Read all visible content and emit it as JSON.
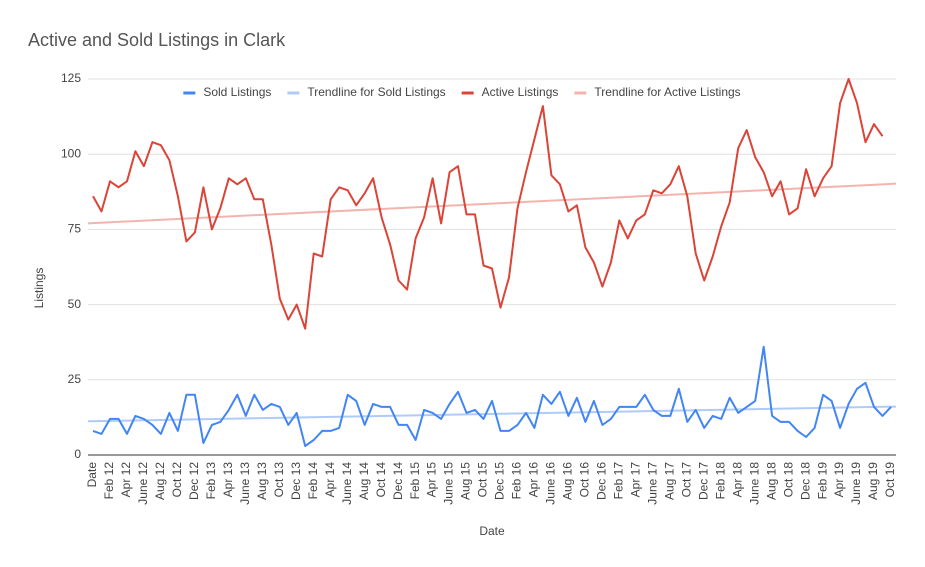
{
  "chart_data": {
    "type": "line",
    "title": "Active and Sold Listings in Clark",
    "x_label": "Date",
    "y_label": "Listings",
    "categories": [
      "Date",
      null,
      "Feb 12",
      null,
      "Apr 12",
      null,
      "June 12",
      null,
      "Aug 12",
      null,
      "Oct 12",
      null,
      "Dec 12",
      null,
      "Feb 13",
      null,
      "Apr 13",
      null,
      "June 13",
      null,
      "Aug 13",
      null,
      "Oct 13",
      null,
      "Dec 13",
      null,
      "Feb 14",
      null,
      "Apr 14",
      null,
      "June 14",
      null,
      "Aug 14",
      null,
      "Oct 14",
      null,
      "Dec 14",
      null,
      "Feb 15",
      null,
      "Apr 15",
      null,
      "June 15",
      null,
      "Aug 15",
      null,
      "Oct 15",
      null,
      "Dec 15",
      null,
      "Feb 16",
      null,
      "Apr 16",
      null,
      "June 16",
      null,
      "Aug 16",
      null,
      "Oct 16",
      null,
      "Dec 16",
      null,
      "Feb 17",
      null,
      "Apr 17",
      null,
      "June 17",
      null,
      "Aug 17",
      null,
      "Oct 17",
      null,
      "Dec 17",
      null,
      "Feb 18",
      null,
      "Apr 18",
      null,
      "June 18",
      null,
      "Aug 18",
      null,
      "Oct 18",
      null,
      "Dec 18",
      null,
      "Feb 19",
      null,
      "Apr 19",
      null,
      "June 19",
      null,
      "Aug 19",
      null,
      "Oct 19"
    ],
    "series": [
      {
        "name": "Sold Listings",
        "color": "#4285f4",
        "values": [
          8,
          7,
          12,
          12,
          7,
          13,
          12,
          10,
          7,
          14,
          8,
          20,
          20,
          4,
          10,
          11,
          15,
          20,
          13,
          20,
          15,
          17,
          16,
          10,
          14,
          3,
          5,
          8,
          8,
          9,
          20,
          18,
          10,
          17,
          16,
          16,
          10,
          10,
          5,
          15,
          14,
          12,
          17,
          21,
          14,
          15,
          12,
          18,
          8,
          8,
          10,
          14,
          9,
          20,
          17,
          21,
          13,
          19,
          11,
          18,
          10,
          12,
          16,
          16,
          16,
          20,
          15,
          13,
          13,
          22,
          11,
          15,
          9,
          13,
          12,
          19,
          14,
          16,
          18,
          36,
          13,
          11,
          11,
          8,
          6,
          9,
          20,
          18,
          9,
          17,
          22,
          24,
          16,
          13,
          16
        ]
      },
      {
        "name": "Trendline for Sold Listings",
        "color": "#aecbfa",
        "trend_start": 11.2,
        "trend_end": 16.1
      },
      {
        "name": "Active Listings",
        "color": "#db4437",
        "values": [
          86,
          81,
          91,
          89,
          91,
          101,
          96,
          104,
          103,
          98,
          86,
          71,
          74,
          89,
          75,
          82,
          92,
          90,
          92,
          85,
          85,
          70,
          52,
          45,
          50,
          42,
          67,
          66,
          85,
          89,
          88,
          83,
          87,
          92,
          79,
          70,
          58,
          55,
          72,
          79,
          92,
          77,
          94,
          96,
          80,
          80,
          63,
          62,
          49,
          59,
          82,
          94,
          105,
          116,
          93,
          90,
          81,
          83,
          69,
          64,
          56,
          64,
          78,
          72,
          78,
          80,
          88,
          87,
          90,
          96,
          86,
          67,
          58,
          66,
          76,
          84,
          102,
          108,
          99,
          94,
          86,
          91,
          80,
          82,
          95,
          86,
          92,
          96,
          117,
          125,
          117,
          104,
          110,
          106,
          null
        ]
      },
      {
        "name": "Trendline for Active Listings",
        "color": "#f4b4ae",
        "trend_start": 77,
        "trend_end": 90.2
      }
    ],
    "ylim": [
      0,
      125
    ],
    "yticks": [
      0,
      25,
      50,
      75,
      100,
      125
    ],
    "grid": true,
    "legend": "top"
  }
}
